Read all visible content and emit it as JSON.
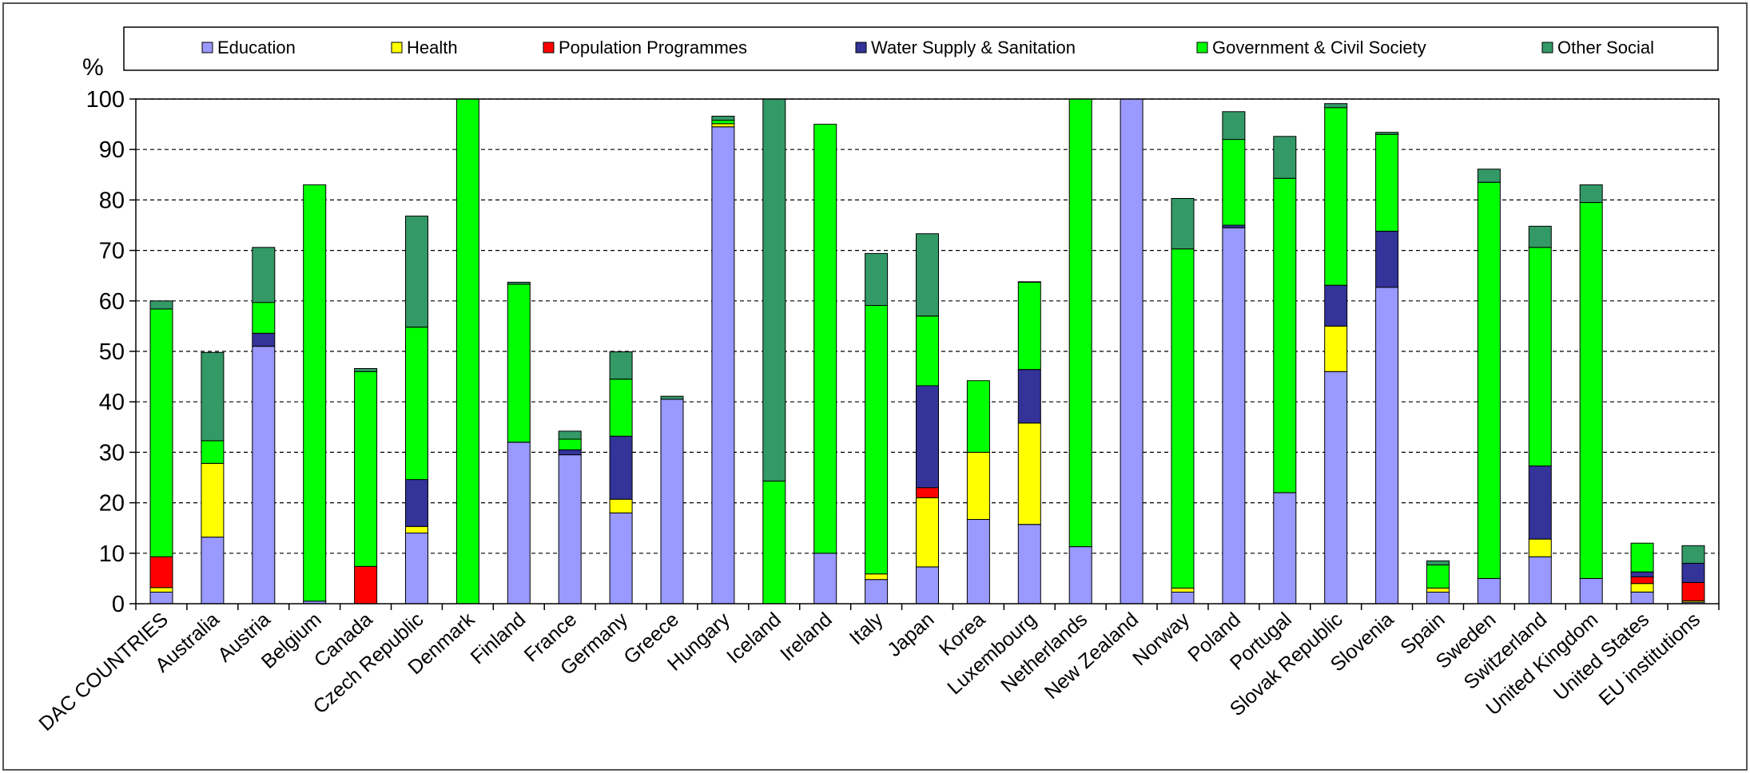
{
  "chart_data": {
    "type": "bar",
    "stacked": true,
    "ylabel": "%",
    "ylim": [
      0,
      100
    ],
    "yticks": [
      0,
      10,
      20,
      30,
      40,
      50,
      60,
      70,
      80,
      90,
      100
    ],
    "grid": true,
    "legend_position": "top",
    "categories": [
      "DAC COUNTRIES",
      "Australia",
      "Austria",
      "Belgium",
      "Canada",
      "Czech Republic",
      "Denmark",
      "Finland",
      "France",
      "Germany",
      "Greece",
      "Hungary",
      "Iceland",
      "Ireland",
      "Italy",
      "Japan",
      "Korea",
      "Luxembourg",
      "Netherlands",
      "New Zealand",
      "Norway",
      "Poland",
      "Portugal",
      "Slovak Republic",
      "Slovenia",
      "Spain",
      "Sweden",
      "Switzerland",
      "United Kingdom",
      "United States",
      "EU institutions"
    ],
    "series": [
      {
        "name": "Education",
        "color": "#9999ff",
        "values": [
          2.3,
          13.2,
          51.0,
          0.5,
          0.0,
          14.0,
          0.0,
          32.0,
          29.5,
          18.0,
          40.5,
          94.5,
          0.0,
          10.0,
          4.8,
          7.3,
          16.7,
          15.7,
          11.3,
          100.0,
          2.3,
          74.5,
          22.0,
          46.0,
          62.7,
          2.3,
          5.0,
          9.3,
          5.0,
          2.3,
          0.3
        ]
      },
      {
        "name": "Health",
        "color": "#ffff00",
        "values": [
          0.9,
          14.6,
          0.0,
          0.0,
          0.0,
          1.3,
          0.0,
          0.0,
          0.0,
          2.7,
          0.0,
          0.6,
          0.0,
          0.0,
          1.1,
          13.7,
          13.3,
          20.1,
          0.0,
          0.0,
          0.8,
          0.0,
          0.0,
          9.0,
          0.0,
          0.8,
          0.0,
          3.5,
          0.0,
          1.7,
          0.3
        ]
      },
      {
        "name": "Population Programmes",
        "color": "#ff0000",
        "values": [
          6.1,
          0.0,
          0.0,
          0.0,
          7.4,
          0.0,
          0.0,
          0.0,
          0.0,
          0.0,
          0.0,
          0.0,
          0.0,
          0.0,
          0.0,
          2.0,
          0.0,
          0.0,
          0.0,
          0.0,
          0.0,
          0.0,
          0.0,
          0.0,
          0.0,
          0.0,
          0.0,
          0.0,
          0.0,
          1.3,
          3.6
        ]
      },
      {
        "name": "Water Supply & Sanitation",
        "color": "#333399",
        "values": [
          0.0,
          0.0,
          2.6,
          0.0,
          0.0,
          9.3,
          0.0,
          0.0,
          1.0,
          12.5,
          0.0,
          0.0,
          0.0,
          0.0,
          0.0,
          20.2,
          0.0,
          10.6,
          0.0,
          0.0,
          0.0,
          0.5,
          0.0,
          8.1,
          11.1,
          0.0,
          0.0,
          14.5,
          0.0,
          1.0,
          3.8
        ]
      },
      {
        "name": "Government & Civil Society",
        "color": "#00ff00",
        "values": [
          49.1,
          4.5,
          6.1,
          82.5,
          38.6,
          30.2,
          100.0,
          31.3,
          2.1,
          11.3,
          0.0,
          0.7,
          24.3,
          85.0,
          53.2,
          13.8,
          14.2,
          17.3,
          88.7,
          0.0,
          67.2,
          17.0,
          62.3,
          35.2,
          19.2,
          4.6,
          78.5,
          43.3,
          74.5,
          5.7,
          0.0
        ]
      },
      {
        "name": "Other Social",
        "color": "#339966",
        "values": [
          1.6,
          17.5,
          10.9,
          0.0,
          0.6,
          22.0,
          0.0,
          0.4,
          1.6,
          5.4,
          0.6,
          0.8,
          75.7,
          0.0,
          10.3,
          16.3,
          0.0,
          0.1,
          0.0,
          0.0,
          10.0,
          5.5,
          8.3,
          0.8,
          0.4,
          0.8,
          2.6,
          4.2,
          3.5,
          0.0,
          3.5
        ]
      }
    ]
  }
}
